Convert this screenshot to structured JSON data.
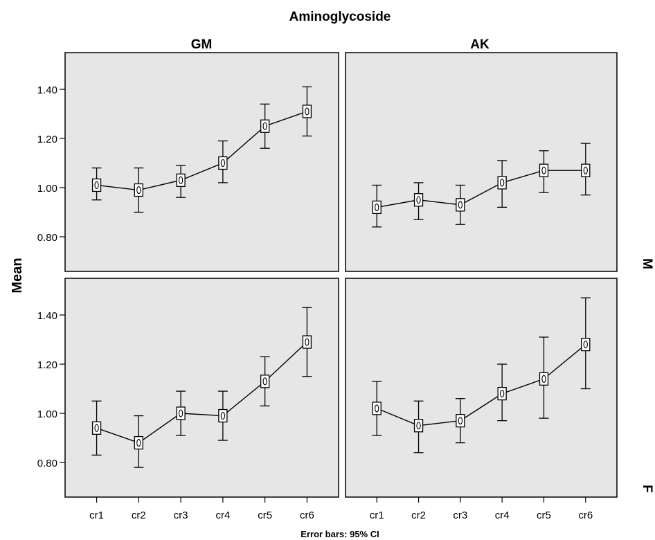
{
  "chart_data": {
    "type": "line",
    "title": "Aminoglycoside",
    "ylabel": "Mean",
    "footnote": "Error bars: 95% CI",
    "categories": [
      "cr1",
      "cr2",
      "cr3",
      "cr4",
      "cr5",
      "cr6"
    ],
    "yticks": [
      0.8,
      1.0,
      1.2,
      1.4
    ],
    "ytick_labels": [
      "0.80",
      "1.00",
      "1.20",
      "1.40"
    ],
    "ylim": [
      0.64,
      1.53
    ],
    "grid": false,
    "columns": [
      "GM",
      "AK"
    ],
    "rows": [
      "M",
      "F"
    ],
    "panels": [
      {
        "column": "GM",
        "row": "M",
        "mean": [
          1.01,
          0.99,
          1.03,
          1.1,
          1.25,
          1.31
        ],
        "lower": [
          0.95,
          0.9,
          0.96,
          1.02,
          1.16,
          1.21
        ],
        "upper": [
          1.08,
          1.08,
          1.09,
          1.19,
          1.34,
          1.41
        ]
      },
      {
        "column": "AK",
        "row": "M",
        "mean": [
          0.92,
          0.95,
          0.93,
          1.02,
          1.07,
          1.07
        ],
        "lower": [
          0.84,
          0.87,
          0.85,
          0.92,
          0.98,
          0.97
        ],
        "upper": [
          1.01,
          1.02,
          1.01,
          1.11,
          1.15,
          1.18
        ]
      },
      {
        "column": "GM",
        "row": "F",
        "mean": [
          0.94,
          0.88,
          1.0,
          0.99,
          1.13,
          1.29
        ],
        "lower": [
          0.83,
          0.78,
          0.91,
          0.89,
          1.03,
          1.15
        ],
        "upper": [
          1.05,
          0.99,
          1.09,
          1.09,
          1.23,
          1.43
        ]
      },
      {
        "column": "AK",
        "row": "F",
        "mean": [
          1.02,
          0.95,
          0.97,
          1.08,
          1.14,
          1.28
        ],
        "lower": [
          0.91,
          0.84,
          0.88,
          0.97,
          0.98,
          1.1
        ],
        "upper": [
          1.13,
          1.05,
          1.06,
          1.2,
          1.31,
          1.47
        ]
      }
    ]
  }
}
